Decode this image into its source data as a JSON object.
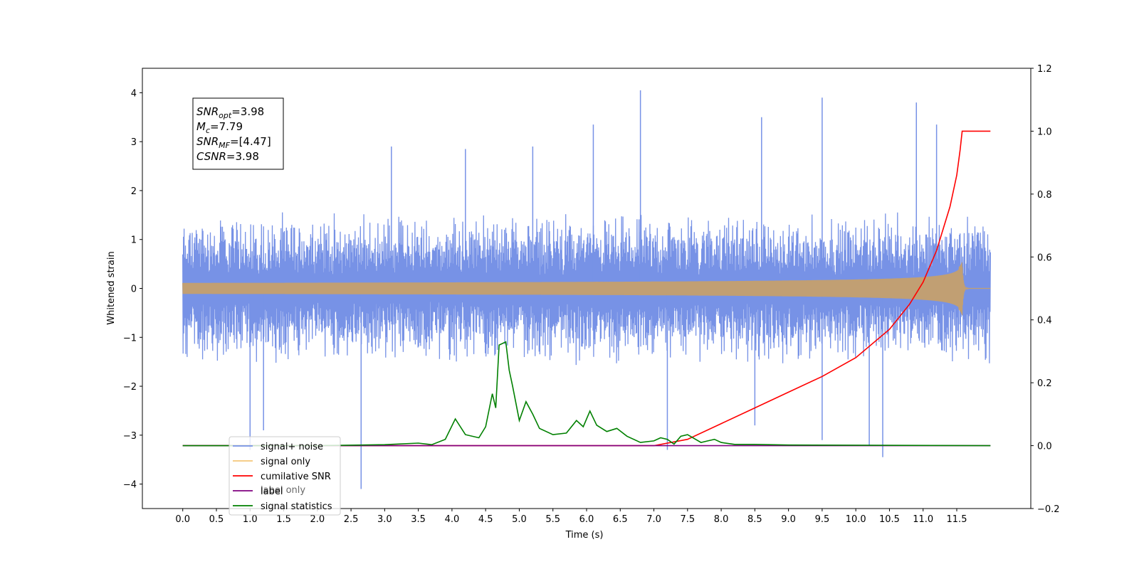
{
  "chart_data": {
    "type": "line",
    "xlabel": "Time (s)",
    "ylabel": "Whitened strain",
    "xlim": [
      -0.6,
      12.6
    ],
    "ylim": [
      -4.5,
      4.5
    ],
    "y2lim": [
      -0.2,
      1.2
    ],
    "x_ticks": [
      "0.0",
      "0.5",
      "1.0",
      "1.5",
      "2.0",
      "2.5",
      "3.0",
      "3.5",
      "4.0",
      "4.5",
      "5.0",
      "5.5",
      "6.0",
      "6.5",
      "7.0",
      "7.5",
      "8.0",
      "8.5",
      "9.0",
      "9.5",
      "10.0",
      "10.5",
      "11.0",
      "11.5"
    ],
    "y_ticks": [
      "4",
      "3",
      "2",
      "1",
      "0",
      "−1",
      "−2",
      "−3",
      "−4"
    ],
    "y2_ticks": [
      "1.2",
      "1.0",
      "0.8",
      "0.6",
      "0.4",
      "0.2",
      "0.0",
      "−0.2"
    ],
    "annotation": {
      "lines": [
        {
          "base": "SNR",
          "sub": "opt",
          "value": "=3.98"
        },
        {
          "base": "M",
          "sub": "c",
          "value": "=7.79"
        },
        {
          "base": "SNR",
          "sub": "MF",
          "value": "=[4.47]"
        },
        {
          "base": "CSNR",
          "sub": "",
          "value": "=3.98"
        }
      ]
    },
    "legend": {
      "placement": "lower-left",
      "entries": [
        {
          "label": "signal+ noise",
          "color": "#7792e6"
        },
        {
          "label": "signal only",
          "color": "#f5c77a"
        },
        {
          "label": "cumilative SNR",
          "color": "#ff0000"
        },
        {
          "label": "label",
          "color": "#800080"
        },
        {
          "label": "signal statistics",
          "color": "#008000"
        }
      ],
      "hidden_text": "label only"
    },
    "series": [
      {
        "name": "signal+ noise",
        "axis": "left",
        "color": "#7792e6",
        "style": "noise",
        "x_range": [
          0.0,
          12.0
        ],
        "envelope": 1.6,
        "spikes": [
          {
            "x": 1.0,
            "y": -3.3
          },
          {
            "x": 1.2,
            "y": -2.9
          },
          {
            "x": 2.65,
            "y": -4.1
          },
          {
            "x": 3.1,
            "y": 2.9
          },
          {
            "x": 4.2,
            "y": 2.85
          },
          {
            "x": 5.2,
            "y": 2.9
          },
          {
            "x": 6.1,
            "y": 3.35
          },
          {
            "x": 6.8,
            "y": 4.05
          },
          {
            "x": 7.2,
            "y": -3.3
          },
          {
            "x": 8.6,
            "y": 3.5
          },
          {
            "x": 9.5,
            "y": 3.9
          },
          {
            "x": 10.2,
            "y": -3.2
          },
          {
            "x": 10.4,
            "y": -3.45
          },
          {
            "x": 10.9,
            "y": 3.8
          },
          {
            "x": 11.2,
            "y": 3.35
          },
          {
            "x": 9.5,
            "y": -3.1
          },
          {
            "x": 8.5,
            "y": -2.8
          }
        ]
      },
      {
        "name": "signal only",
        "axis": "left",
        "color": "#c19f73",
        "style": "chirp",
        "x_range": [
          0.0,
          12.0
        ],
        "merger_x": 11.58,
        "peak_amplitude": 0.55
      },
      {
        "name": "cumilative SNR",
        "axis": "right",
        "color": "#ff0000",
        "x": [
          0.0,
          7.0,
          7.5,
          8.0,
          8.5,
          9.0,
          9.5,
          10.0,
          10.5,
          10.8,
          11.0,
          11.2,
          11.4,
          11.5,
          11.55,
          11.58,
          12.0
        ],
        "y": [
          0.0,
          0.0,
          0.02,
          0.07,
          0.12,
          0.17,
          0.22,
          0.28,
          0.37,
          0.45,
          0.52,
          0.62,
          0.76,
          0.86,
          0.94,
          1.0,
          1.0
        ]
      },
      {
        "name": "label",
        "axis": "right",
        "color": "#800080",
        "x": [
          0.0,
          12.0
        ],
        "y": [
          0.0,
          0.0
        ]
      },
      {
        "name": "signal statistics",
        "axis": "right",
        "color": "#008000",
        "x": [
          0.0,
          2.0,
          3.0,
          3.5,
          3.7,
          3.9,
          4.05,
          4.2,
          4.4,
          4.5,
          4.6,
          4.65,
          4.7,
          4.8,
          4.85,
          4.9,
          5.0,
          5.1,
          5.2,
          5.3,
          5.5,
          5.7,
          5.85,
          5.95,
          6.05,
          6.15,
          6.3,
          6.45,
          6.6,
          6.8,
          7.0,
          7.1,
          7.2,
          7.3,
          7.4,
          7.5,
          7.7,
          7.8,
          7.9,
          8.0,
          8.2,
          8.5,
          9.0,
          12.0
        ],
        "y": [
          0.0,
          0.0,
          0.003,
          0.008,
          0.003,
          0.02,
          0.085,
          0.035,
          0.025,
          0.06,
          0.165,
          0.12,
          0.32,
          0.33,
          0.24,
          0.19,
          0.08,
          0.14,
          0.1,
          0.055,
          0.035,
          0.04,
          0.08,
          0.06,
          0.11,
          0.065,
          0.045,
          0.055,
          0.03,
          0.01,
          0.015,
          0.025,
          0.02,
          0.005,
          0.03,
          0.035,
          0.01,
          0.015,
          0.02,
          0.01,
          0.004,
          0.004,
          0.002,
          0.0
        ]
      }
    ]
  }
}
